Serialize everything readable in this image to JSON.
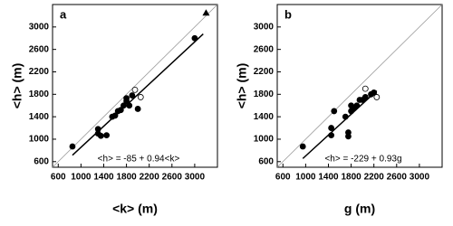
{
  "chart_data": [
    {
      "type": "scatter",
      "panel_label": "a",
      "x_label": "<k> (m)",
      "y_label": "<h> (m)",
      "annotation": "<h> = -85 + 0.94<k>",
      "xlim": [
        500,
        3400
      ],
      "ylim": [
        500,
        3400
      ],
      "xticks": [
        600,
        1000,
        1400,
        1800,
        2200,
        2600,
        3000
      ],
      "yticks": [
        600,
        1000,
        1400,
        1800,
        2200,
        2600,
        3000
      ],
      "series": [
        {
          "name": "filled",
          "marker": "circle-filled",
          "color": "#000000",
          "x": [
            850,
            1300,
            1300,
            1350,
            1450,
            1550,
            1600,
            1650,
            1700,
            1750,
            1800,
            1800,
            1850,
            1900,
            2000,
            3000
          ],
          "values": [
            870,
            1180,
            1100,
            1060,
            1070,
            1400,
            1420,
            1500,
            1520,
            1600,
            1680,
            1730,
            1600,
            1780,
            1540,
            2800
          ]
        },
        {
          "name": "open",
          "marker": "circle-open",
          "color": "#000000",
          "x": [
            1950,
            2050
          ],
          "values": [
            1880,
            1750
          ]
        },
        {
          "name": "triangle",
          "marker": "triangle",
          "color": "#000000",
          "x": [
            3200
          ],
          "values": [
            3250
          ]
        }
      ],
      "fit_line": {
        "x": [
          850,
          3150
        ],
        "values": [
          714,
          2876
        ]
      }
    },
    {
      "type": "scatter",
      "panel_label": "b",
      "x_label": "g (m)",
      "y_label": "<h> (m)",
      "annotation": "<h> = -229 + 0.93g",
      "xlim": [
        500,
        3400
      ],
      "ylim": [
        500,
        3400
      ],
      "xticks": [
        600,
        1000,
        1400,
        1800,
        2200,
        2600,
        3000
      ],
      "yticks": [
        600,
        1000,
        1400,
        1800,
        2200,
        2600,
        3000
      ],
      "series": [
        {
          "name": "filled",
          "marker": "circle-filled",
          "color": "#000000",
          "x": [
            950,
            1450,
            1450,
            1500,
            1700,
            1750,
            1750,
            1800,
            1800,
            1850,
            1900,
            1950,
            2000,
            2050,
            2150,
            2200
          ],
          "values": [
            870,
            1200,
            1070,
            1500,
            1400,
            1050,
            1120,
            1500,
            1600,
            1550,
            1600,
            1700,
            1700,
            1750,
            1800,
            1830
          ]
        },
        {
          "name": "open",
          "marker": "circle-open",
          "color": "#000000",
          "x": [
            2050,
            2250
          ],
          "values": [
            1900,
            1750
          ]
        }
      ],
      "fit_line": {
        "x": [
          950,
          2250
        ],
        "values": [
          655,
          1863
        ]
      }
    }
  ]
}
